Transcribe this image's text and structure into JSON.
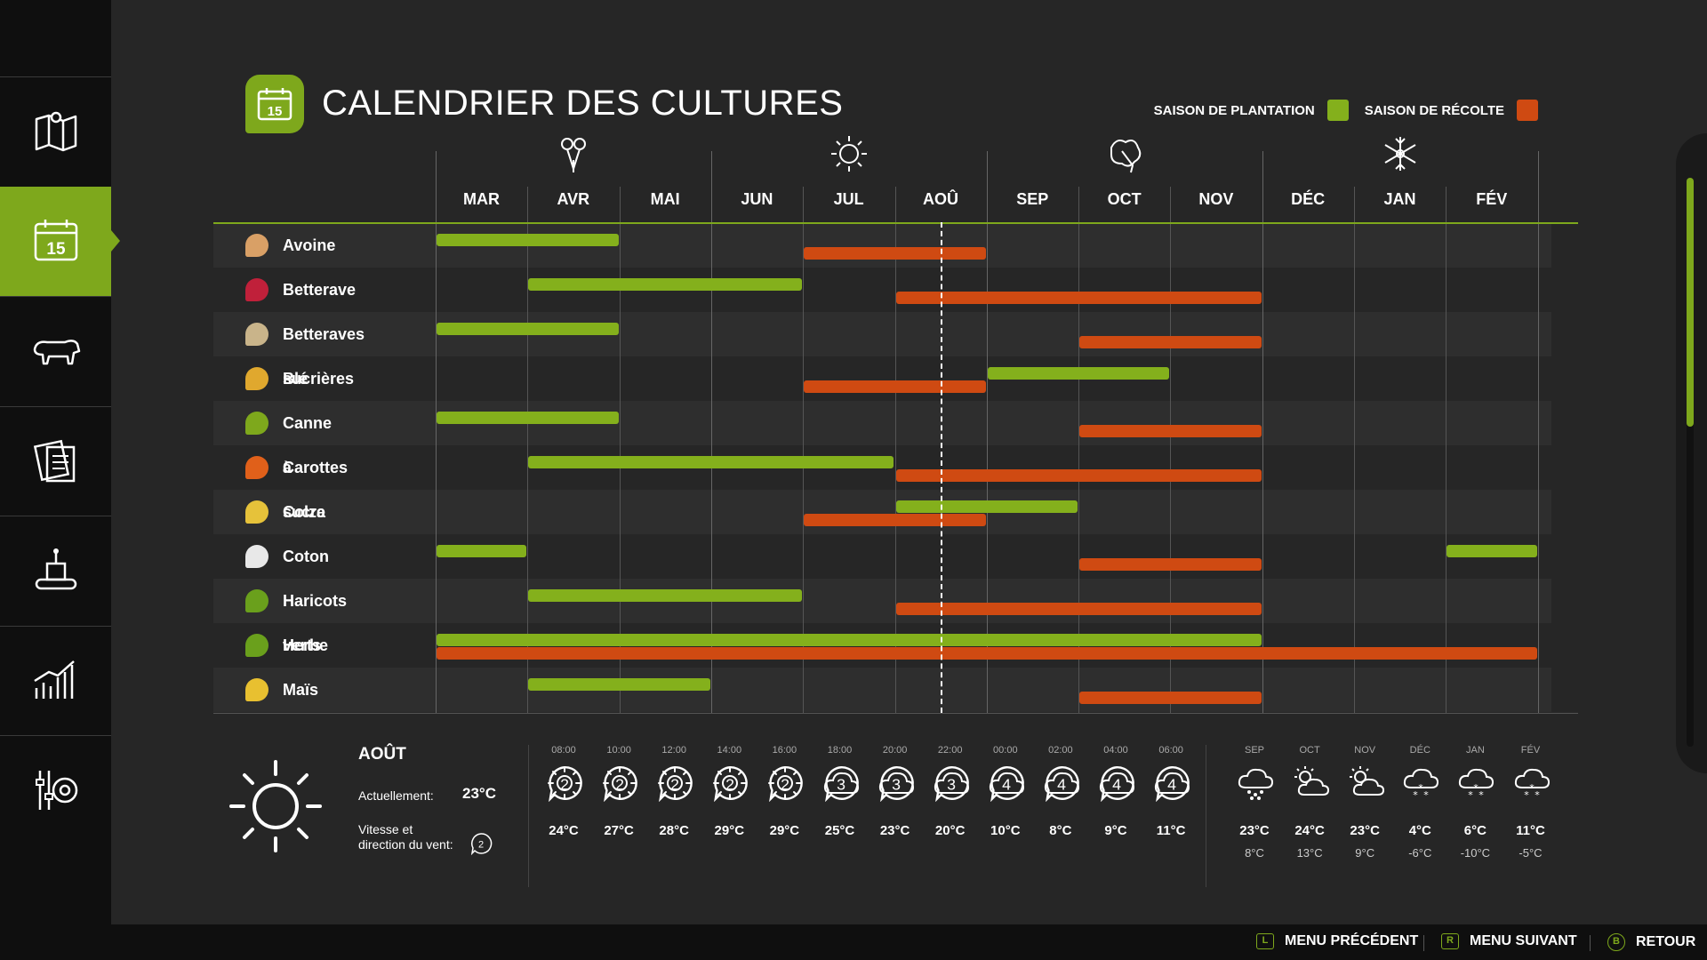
{
  "sidebar": {
    "items": [
      {
        "icon": "map-icon",
        "active": false
      },
      {
        "icon": "calendar-icon",
        "active": true
      },
      {
        "icon": "cow-icon",
        "active": false
      },
      {
        "icon": "contracts-icon",
        "active": false
      },
      {
        "icon": "production-icon",
        "active": false
      },
      {
        "icon": "statistics-icon",
        "active": false
      },
      {
        "icon": "settings-icon",
        "active": false
      }
    ]
  },
  "header": {
    "title": "CALENDRIER DES CULTURES",
    "icon": "calendar-icon",
    "calendar_number": "15"
  },
  "legend": {
    "planting": "SAISON DE PLANTATION",
    "harvest": "SAISON DE RÉCOLTE",
    "planting_color": "#84b01c",
    "harvest_color": "#cf4a12"
  },
  "months": [
    "MAR",
    "AVR",
    "MAI",
    "JUN",
    "JUL",
    "AOÛ",
    "SEP",
    "OCT",
    "NOV",
    "DÉC",
    "JAN",
    "FÉV"
  ],
  "seasons": [
    {
      "icon": "spring-flower-icon",
      "month_index": 1
    },
    {
      "icon": "summer-sun-icon",
      "month_index": 4
    },
    {
      "icon": "autumn-leaf-icon",
      "month_index": 7
    },
    {
      "icon": "winter-snow-icon",
      "month_index": 10
    }
  ],
  "current_month_position": 5.5,
  "crops": [
    {
      "name": "Avoine",
      "icon": "oat-icon",
      "plant": [
        [
          0,
          2
        ]
      ],
      "harvest": [
        [
          4,
          6
        ]
      ]
    },
    {
      "name": "Betterave",
      "icon": "beetroot-icon",
      "plant": [
        [
          1,
          4
        ]
      ],
      "harvest": [
        [
          5,
          9
        ]
      ]
    },
    {
      "name": "Betteraves sucrières",
      "icon": "sugarbeet-icon",
      "plant": [
        [
          0,
          2
        ]
      ],
      "harvest": [
        [
          7,
          9
        ]
      ]
    },
    {
      "name": "Blé",
      "icon": "wheat-icon",
      "plant": [
        [
          6,
          8
        ]
      ],
      "harvest": [
        [
          4,
          6
        ]
      ]
    },
    {
      "name": "Canne à sucre",
      "icon": "sugarcane-icon",
      "plant": [
        [
          0,
          2
        ]
      ],
      "harvest": [
        [
          7,
          9
        ]
      ]
    },
    {
      "name": "Carottes",
      "icon": "carrot-icon",
      "plant": [
        [
          1,
          5
        ]
      ],
      "harvest": [
        [
          5,
          9
        ]
      ]
    },
    {
      "name": "Colza",
      "icon": "canola-icon",
      "plant": [
        [
          5,
          7
        ]
      ],
      "harvest": [
        [
          4,
          6
        ]
      ]
    },
    {
      "name": "Coton",
      "icon": "cotton-icon",
      "plant": [
        [
          0,
          1
        ],
        [
          11,
          12
        ]
      ],
      "harvest": [
        [
          7,
          9
        ]
      ]
    },
    {
      "name": "Haricots verts",
      "icon": "greenbeans-icon",
      "plant": [
        [
          1,
          4
        ]
      ],
      "harvest": [
        [
          5,
          9
        ]
      ]
    },
    {
      "name": "Herbe",
      "icon": "grass-icon",
      "plant": [
        [
          0,
          9
        ]
      ],
      "harvest": [
        [
          0,
          12
        ]
      ]
    },
    {
      "name": "Maïs",
      "icon": "corn-icon",
      "plant": [
        [
          1,
          3
        ]
      ],
      "harvest": [
        [
          7,
          9
        ]
      ]
    }
  ],
  "weather": {
    "month": "AOÛT",
    "current_label": "Actuellement:",
    "current_temp": "23°C",
    "wind_label": "Vitesse et\ndirection du vent:",
    "wind_value": "2",
    "icon": "sun-icon",
    "hourly": [
      {
        "time": "08:00",
        "icon": "sun",
        "temp": "24°C",
        "wind": "2"
      },
      {
        "time": "10:00",
        "icon": "sun",
        "temp": "27°C",
        "wind": "2"
      },
      {
        "time": "12:00",
        "icon": "sun",
        "temp": "28°C",
        "wind": "2"
      },
      {
        "time": "14:00",
        "icon": "sun",
        "temp": "29°C",
        "wind": "2"
      },
      {
        "time": "16:00",
        "icon": "sun",
        "temp": "29°C",
        "wind": "2"
      },
      {
        "time": "18:00",
        "icon": "cloud",
        "temp": "25°C",
        "wind": "3"
      },
      {
        "time": "20:00",
        "icon": "cloud",
        "temp": "23°C",
        "wind": "3"
      },
      {
        "time": "22:00",
        "icon": "cloud",
        "temp": "20°C",
        "wind": "3"
      },
      {
        "time": "00:00",
        "icon": "cloud",
        "temp": "10°C",
        "wind": "4"
      },
      {
        "time": "02:00",
        "icon": "cloud",
        "temp": "8°C",
        "wind": "4"
      },
      {
        "time": "04:00",
        "icon": "cloud",
        "temp": "9°C",
        "wind": "4"
      },
      {
        "time": "06:00",
        "icon": "cloud",
        "temp": "11°C",
        "wind": "4"
      }
    ],
    "forecast": [
      {
        "month": "SEP",
        "icon": "hail",
        "high": "23°C",
        "low": "8°C"
      },
      {
        "month": "OCT",
        "icon": "partly-cloudy",
        "high": "24°C",
        "low": "13°C"
      },
      {
        "month": "NOV",
        "icon": "partly-cloudy",
        "high": "23°C",
        "low": "9°C"
      },
      {
        "month": "DÉC",
        "icon": "snow",
        "high": "4°C",
        "low": "-6°C"
      },
      {
        "month": "JAN",
        "icon": "snow",
        "high": "6°C",
        "low": "-10°C"
      },
      {
        "month": "FÉV",
        "icon": "snow",
        "high": "11°C",
        "low": "-5°C"
      }
    ]
  },
  "footer": {
    "prev_key": "L",
    "prev_label": "MENU PRÉCÉDENT",
    "next_key": "R",
    "next_label": "MENU SUIVANT",
    "back_key": "B",
    "back_label": "RETOUR"
  }
}
